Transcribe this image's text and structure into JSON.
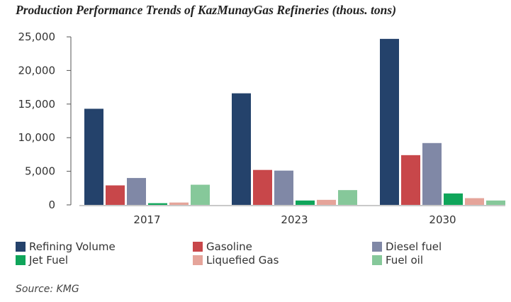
{
  "chart_data": {
    "type": "bar",
    "title": "Production Performance Trends of KazMunayGas Refineries (thous. tons)",
    "categories": [
      "2017",
      "2023",
      "2030"
    ],
    "ylim": [
      0,
      25000
    ],
    "yticks": [
      "0",
      "5,000",
      "10,000",
      "15,000",
      "20,000",
      "25,000"
    ],
    "ytick_values": [
      0,
      5000,
      10000,
      15000,
      20000,
      25000
    ],
    "grid": false,
    "legend_position": "bottom",
    "series": [
      {
        "name": "Refining Volume",
        "color": "#24426b",
        "values": [
          14300,
          16600,
          24700
        ]
      },
      {
        "name": "Gasoline",
        "color": "#c8474a",
        "values": [
          2900,
          5200,
          7400
        ]
      },
      {
        "name": "Diesel fuel",
        "color": "#8088a6",
        "values": [
          4000,
          5100,
          9200
        ]
      },
      {
        "name": "Jet Fuel",
        "color": "#0fa55a",
        "values": [
          250,
          650,
          1700
        ]
      },
      {
        "name": "Liquefied Gas",
        "color": "#e5a49a",
        "values": [
          350,
          750,
          1000
        ]
      },
      {
        "name": "Fuel oil",
        "color": "#86c89a",
        "values": [
          3000,
          2200,
          650
        ]
      }
    ],
    "source": "Source: KMG"
  }
}
